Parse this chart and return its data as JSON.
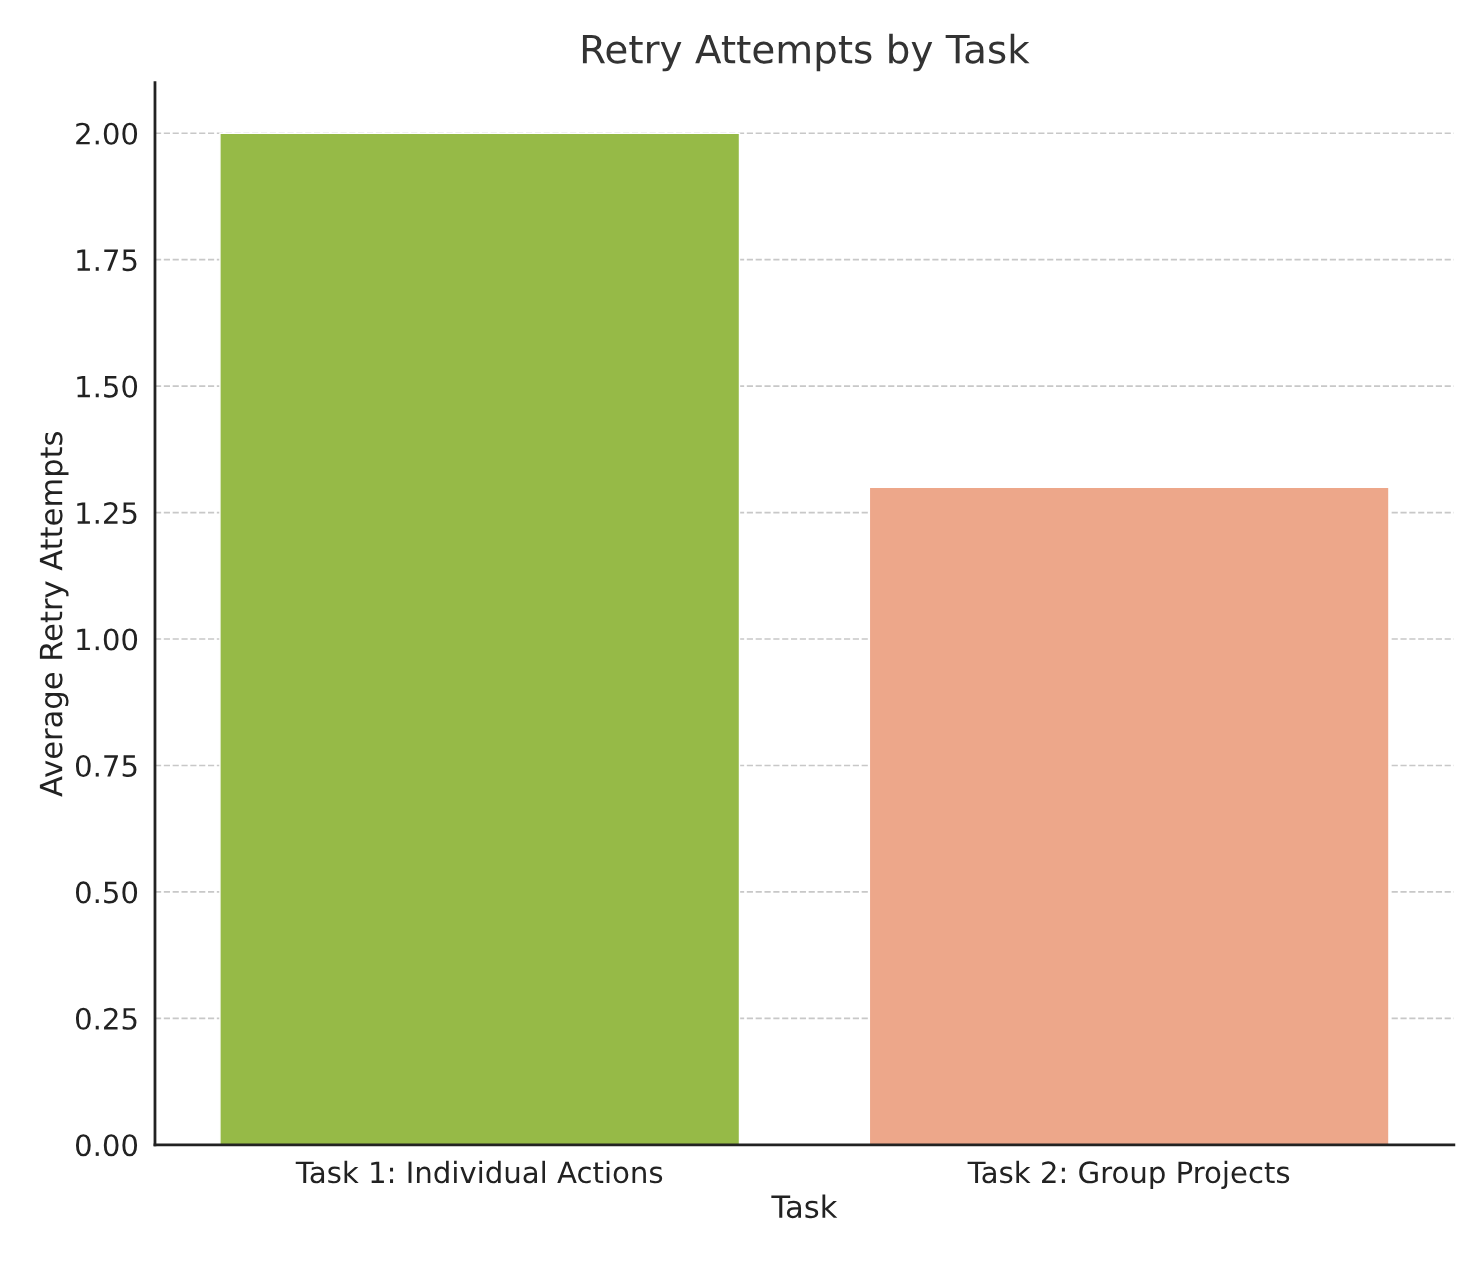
{
  "chart_data": {
    "type": "bar",
    "title": "Retry Attempts by Task",
    "xlabel": "Task",
    "ylabel": "Average Retry Attempts",
    "categories": [
      "Task 1: Individual Actions",
      "Task 2: Group Projects"
    ],
    "values": [
      2.0,
      1.3
    ],
    "colors": [
      "#96ba47",
      "#eda78a"
    ],
    "ylim": [
      0,
      2.1
    ],
    "yticks": [
      {
        "value": 0,
        "label": "0.00"
      },
      {
        "value": 0.25,
        "label": "0.25"
      },
      {
        "value": 0.5,
        "label": "0.50"
      },
      {
        "value": 0.75,
        "label": "0.75"
      },
      {
        "value": 1.0,
        "label": "1.00"
      },
      {
        "value": 1.25,
        "label": "1.25"
      },
      {
        "value": 1.5,
        "label": "1.50"
      },
      {
        "value": 1.75,
        "label": "1.75"
      },
      {
        "value": 2.0,
        "label": "2.00"
      }
    ],
    "grid": "y",
    "line_style": "dashed"
  }
}
